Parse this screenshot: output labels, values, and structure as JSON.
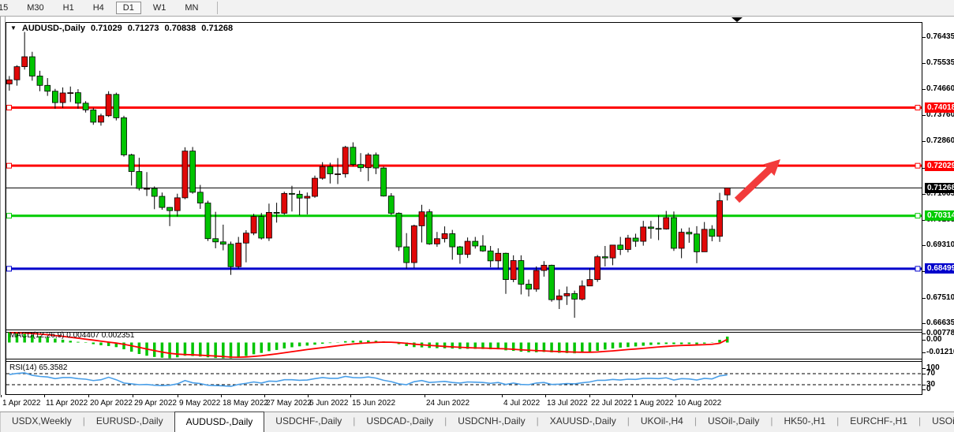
{
  "toolbar": {
    "timeframes": [
      "15",
      "M30",
      "H1",
      "H4",
      "D1",
      "W1",
      "MN"
    ],
    "active": "D1"
  },
  "chart": {
    "title": {
      "symbol": "AUDUSD-,Daily",
      "open": "0.71029",
      "high": "0.71273",
      "low": "0.70838",
      "close": "0.71268"
    },
    "price_axis_ticks": [
      0.76435,
      0.75535,
      0.7466,
      0.7376,
      0.7286,
      0.71965,
      0.71065,
      0.70165,
      0.6931,
      0.6841,
      0.6751,
      0.66635
    ],
    "levels": [
      {
        "price": 0.74018,
        "label": "0.74018",
        "color": "#fe0000"
      },
      {
        "price": 0.72029,
        "label": "0.72029",
        "color": "#fe0000"
      },
      {
        "price": 0.70314,
        "label": "0.70314",
        "color": "#00cc00"
      },
      {
        "price": 0.68499,
        "label": "0.68499",
        "color": "#0000cc"
      }
    ],
    "current_price": {
      "price": 0.71268,
      "label": "0.71268",
      "color": "#000000"
    },
    "candles": {
      "up_color": "#e00808",
      "down_color": "#00c400",
      "ohlc": [
        [
          0.7483,
          0.751,
          0.746,
          0.7497
        ],
        [
          0.7497,
          0.7547,
          0.7477,
          0.7542
        ],
        [
          0.7542,
          0.7661,
          0.7532,
          0.7576
        ],
        [
          0.7576,
          0.7593,
          0.7494,
          0.751
        ],
        [
          0.751,
          0.7528,
          0.7458,
          0.7478
        ],
        [
          0.7478,
          0.7503,
          0.7442,
          0.7458
        ],
        [
          0.7458,
          0.7466,
          0.7398,
          0.7419
        ],
        [
          0.7419,
          0.7471,
          0.7401,
          0.7452
        ],
        [
          0.7452,
          0.7474,
          0.7421,
          0.7453
        ],
        [
          0.7453,
          0.7465,
          0.7398,
          0.7417
        ],
        [
          0.7417,
          0.7424,
          0.7385,
          0.7394
        ],
        [
          0.7394,
          0.7401,
          0.7343,
          0.7352
        ],
        [
          0.7352,
          0.7381,
          0.734,
          0.7374
        ],
        [
          0.7374,
          0.7458,
          0.737,
          0.7447
        ],
        [
          0.7447,
          0.7453,
          0.7358,
          0.7367
        ],
        [
          0.7367,
          0.7374,
          0.7234,
          0.724
        ],
        [
          0.724,
          0.7244,
          0.7135,
          0.7183
        ],
        [
          0.7183,
          0.723,
          0.7118,
          0.7125
        ],
        [
          0.7125,
          0.7181,
          0.7099,
          0.7125
        ],
        [
          0.7125,
          0.7132,
          0.7054,
          0.7098
        ],
        [
          0.7098,
          0.7111,
          0.7052,
          0.706
        ],
        [
          0.706,
          0.7061,
          0.6996,
          0.7049
        ],
        [
          0.7049,
          0.7107,
          0.7029,
          0.7093
        ],
        [
          0.7093,
          0.7266,
          0.7088,
          0.7253
        ],
        [
          0.7253,
          0.7267,
          0.7107,
          0.7112
        ],
        [
          0.7112,
          0.7137,
          0.7055,
          0.7075
        ],
        [
          0.7075,
          0.7083,
          0.6945,
          0.6953
        ],
        [
          0.6953,
          0.7045,
          0.692,
          0.6942
        ],
        [
          0.6942,
          0.7001,
          0.6913,
          0.6934
        ],
        [
          0.6934,
          0.6943,
          0.6829,
          0.6857
        ],
        [
          0.6857,
          0.6959,
          0.685,
          0.6938
        ],
        [
          0.6938,
          0.6982,
          0.6872,
          0.6972
        ],
        [
          0.6972,
          0.7038,
          0.6965,
          0.7029
        ],
        [
          0.7029,
          0.7041,
          0.695,
          0.6955
        ],
        [
          0.6955,
          0.7073,
          0.6945,
          0.7043
        ],
        [
          0.7043,
          0.7076,
          0.7008,
          0.704
        ],
        [
          0.704,
          0.7114,
          0.7035,
          0.7108
        ],
        [
          0.7108,
          0.7134,
          0.7046,
          0.7105
        ],
        [
          0.7105,
          0.7118,
          0.7033,
          0.7092
        ],
        [
          0.7092,
          0.7111,
          0.7036,
          0.7098
        ],
        [
          0.7098,
          0.7169,
          0.7093,
          0.716
        ],
        [
          0.716,
          0.7215,
          0.7155,
          0.72
        ],
        [
          0.72,
          0.7213,
          0.7142,
          0.7175
        ],
        [
          0.7175,
          0.7229,
          0.714,
          0.7175
        ],
        [
          0.7175,
          0.7271,
          0.7162,
          0.7266
        ],
        [
          0.7266,
          0.7283,
          0.72,
          0.7207
        ],
        [
          0.7207,
          0.7246,
          0.7182,
          0.7196
        ],
        [
          0.7196,
          0.7247,
          0.715,
          0.724
        ],
        [
          0.724,
          0.7248,
          0.7174,
          0.7195
        ],
        [
          0.7195,
          0.72,
          0.7097,
          0.7099
        ],
        [
          0.7099,
          0.7109,
          0.7034,
          0.704
        ],
        [
          0.704,
          0.7043,
          0.6911,
          0.6925
        ],
        [
          0.6925,
          0.6972,
          0.685,
          0.6871
        ],
        [
          0.6871,
          0.7001,
          0.6853,
          0.6997
        ],
        [
          0.6997,
          0.7069,
          0.694,
          0.7045
        ],
        [
          0.7045,
          0.7054,
          0.6932,
          0.6935
        ],
        [
          0.6935,
          0.6976,
          0.6925,
          0.6953
        ],
        [
          0.6953,
          0.6995,
          0.694,
          0.697
        ],
        [
          0.697,
          0.6983,
          0.6881,
          0.6925
        ],
        [
          0.6925,
          0.6928,
          0.6867,
          0.6899
        ],
        [
          0.6899,
          0.6957,
          0.6887,
          0.6944
        ],
        [
          0.6944,
          0.6959,
          0.6919,
          0.6928
        ],
        [
          0.6928,
          0.6965,
          0.6908,
          0.6911
        ],
        [
          0.6911,
          0.6928,
          0.6855,
          0.6877
        ],
        [
          0.6877,
          0.692,
          0.6851,
          0.6903
        ],
        [
          0.6903,
          0.6905,
          0.6764,
          0.6813
        ],
        [
          0.6813,
          0.6896,
          0.6804,
          0.6878
        ],
        [
          0.6878,
          0.6896,
          0.6762,
          0.6797
        ],
        [
          0.6797,
          0.6813,
          0.6755,
          0.678
        ],
        [
          0.678,
          0.6858,
          0.6771,
          0.6844
        ],
        [
          0.6844,
          0.6876,
          0.6823,
          0.6862
        ],
        [
          0.6862,
          0.6864,
          0.6737,
          0.6744
        ],
        [
          0.6744,
          0.6779,
          0.6712,
          0.6757
        ],
        [
          0.6757,
          0.6789,
          0.6726,
          0.6765
        ],
        [
          0.6765,
          0.6775,
          0.6682,
          0.6746
        ],
        [
          0.6746,
          0.681,
          0.6741,
          0.6791
        ],
        [
          0.6791,
          0.6851,
          0.6791,
          0.6813
        ],
        [
          0.6813,
          0.6897,
          0.6805,
          0.6891
        ],
        [
          0.6891,
          0.6928,
          0.6858,
          0.6887
        ],
        [
          0.6887,
          0.6932,
          0.6862,
          0.6931
        ],
        [
          0.6931,
          0.6959,
          0.6897,
          0.6916
        ],
        [
          0.6916,
          0.6966,
          0.6906,
          0.6955
        ],
        [
          0.6955,
          0.697,
          0.6925,
          0.6944
        ],
        [
          0.6944,
          0.7014,
          0.6929,
          0.6993
        ],
        [
          0.6993,
          0.7014,
          0.6953,
          0.6988
        ],
        [
          0.6988,
          0.7033,
          0.6948,
          0.6986
        ],
        [
          0.6986,
          0.7048,
          0.6984,
          0.7025
        ],
        [
          0.7025,
          0.7046,
          0.6911,
          0.692
        ],
        [
          0.692,
          0.6988,
          0.6886,
          0.6975
        ],
        [
          0.6975,
          0.6991,
          0.6939,
          0.6969
        ],
        [
          0.6969,
          0.6996,
          0.6869,
          0.6908
        ],
        [
          0.6908,
          0.701,
          0.6908,
          0.6985
        ],
        [
          0.6985,
          0.6999,
          0.6944,
          0.6961
        ],
        [
          0.6961,
          0.711,
          0.6942,
          0.7083
        ],
        [
          0.71029,
          0.71273,
          0.70838,
          0.71268
        ]
      ]
    },
    "annotation_arrow": {
      "color": "#f23b3b"
    }
  },
  "macd": {
    "label": "MACD(12,26,9) 0.004407 0.002351",
    "axis": [
      "0.00778",
      "0.00",
      "-0.01210"
    ],
    "hist_color": "#00c400",
    "signal_color": "#fe0000",
    "hist": [
      0.0078,
      0.007,
      0.0064,
      0.0056,
      0.0047,
      0.0038,
      0.0029,
      0.0021,
      0.0013,
      0.0005,
      -0.0003,
      -0.0012,
      -0.002,
      -0.0026,
      -0.0034,
      -0.005,
      -0.0068,
      -0.0085,
      -0.0098,
      -0.0107,
      -0.0113,
      -0.0118,
      -0.011,
      -0.0098,
      -0.01,
      -0.0104,
      -0.011,
      -0.0115,
      -0.0119,
      -0.0121,
      -0.0112,
      -0.01,
      -0.0087,
      -0.0077,
      -0.0064,
      -0.0055,
      -0.0044,
      -0.0035,
      -0.0028,
      -0.0023,
      -0.0016,
      -0.0009,
      -0.0004,
      0.0002,
      0.001,
      0.0013,
      0.0014,
      0.0015,
      0.0013,
      0.0008,
      0.0,
      -0.0012,
      -0.0026,
      -0.0034,
      -0.0036,
      -0.004,
      -0.0042,
      -0.0043,
      -0.0045,
      -0.0048,
      -0.0047,
      -0.0047,
      -0.0048,
      -0.005,
      -0.005,
      -0.0058,
      -0.0062,
      -0.0068,
      -0.0072,
      -0.0072,
      -0.007,
      -0.0073,
      -0.0076,
      -0.0078,
      -0.008,
      -0.0076,
      -0.007,
      -0.0062,
      -0.0052,
      -0.0044,
      -0.0038,
      -0.0034,
      -0.0029,
      -0.0024,
      -0.0018,
      -0.0014,
      -0.0011,
      -0.0012,
      -0.0012,
      -0.0011,
      -0.0013,
      -0.0008,
      -0.0002,
      0.002,
      0.0044
    ],
    "signal": [
      0.0074,
      0.0072,
      0.007,
      0.0067,
      0.0063,
      0.0058,
      0.0052,
      0.0046,
      0.0039,
      0.0032,
      0.0025,
      0.0018,
      0.001,
      0.0003,
      -0.0004,
      -0.0013,
      -0.0024,
      -0.0036,
      -0.0048,
      -0.006,
      -0.0071,
      -0.008,
      -0.0086,
      -0.0089,
      -0.0091,
      -0.0094,
      -0.0097,
      -0.01,
      -0.0104,
      -0.0108,
      -0.0109,
      -0.0107,
      -0.0103,
      -0.0098,
      -0.0091,
      -0.0084,
      -0.0076,
      -0.0068,
      -0.006,
      -0.0052,
      -0.0045,
      -0.0038,
      -0.0031,
      -0.0024,
      -0.0017,
      -0.0011,
      -0.0006,
      -0.0002,
      0.0001,
      0.0003,
      0.0002,
      -0.0001,
      -0.0006,
      -0.0012,
      -0.0017,
      -0.0021,
      -0.0025,
      -0.0029,
      -0.0032,
      -0.0035,
      -0.0038,
      -0.004,
      -0.0041,
      -0.0043,
      -0.0045,
      -0.0047,
      -0.005,
      -0.0054,
      -0.0057,
      -0.006,
      -0.0062,
      -0.0065,
      -0.0067,
      -0.0069,
      -0.0071,
      -0.0072,
      -0.0072,
      -0.007,
      -0.0066,
      -0.0062,
      -0.0057,
      -0.0052,
      -0.0048,
      -0.0043,
      -0.0038,
      -0.0033,
      -0.0029,
      -0.0025,
      -0.0022,
      -0.002,
      -0.0018,
      -0.0016,
      -0.0013,
      -0.0006,
      0.0024
    ]
  },
  "rsi": {
    "label": "RSI(14) 65.3582",
    "axis": [
      "100",
      "70",
      "30",
      "0"
    ],
    "line_color": "#4a9fe8",
    "levels": [
      70,
      30
    ],
    "values": [
      67,
      71,
      73,
      64,
      60,
      58,
      52,
      56,
      56,
      52,
      50,
      45,
      48,
      57,
      48,
      36,
      33,
      30,
      31,
      28,
      27,
      28,
      33,
      45,
      37,
      34,
      28,
      27,
      26,
      24,
      31,
      35,
      40,
      36,
      43,
      42,
      48,
      48,
      46,
      47,
      52,
      56,
      53,
      53,
      60,
      56,
      55,
      58,
      54,
      46,
      41,
      33,
      30,
      41,
      45,
      38,
      40,
      42,
      38,
      36,
      40,
      39,
      38,
      35,
      38,
      31,
      36,
      31,
      30,
      36,
      38,
      31,
      32,
      34,
      33,
      37,
      40,
      46,
      46,
      49,
      47,
      50,
      49,
      53,
      53,
      52,
      55,
      47,
      52,
      51,
      47,
      53,
      51,
      62,
      65.36
    ]
  },
  "date_axis": {
    "labels": [
      "1 Apr 2022",
      "11 Apr 2022",
      "20 Apr 2022",
      "29 Apr 2022",
      "9 May 2022",
      "18 May 2022",
      "27 May 2022",
      "6 Jun 2022",
      "15 Jun 2022",
      "24 Jun 2022",
      "4 Jul 2022",
      "13 Jul 2022",
      "22 Jul 2022",
      "1 Aug 2022",
      "10 Aug 2022"
    ]
  },
  "tabs": {
    "items": [
      "USDX,Weekly",
      "EURUSD-,Daily",
      "AUDUSD-,Daily",
      "USDCHF-,Daily",
      "USDCAD-,Daily",
      "USDCNH-,Daily",
      "XAUUSD-,Daily",
      "UKOil-,H4",
      "USOil-,Daily",
      "HK50-,H1",
      "EURCHF-,H1",
      "USOil-,H4"
    ],
    "active_index": 2,
    "nav_left": "◄",
    "nav_right": "►"
  }
}
